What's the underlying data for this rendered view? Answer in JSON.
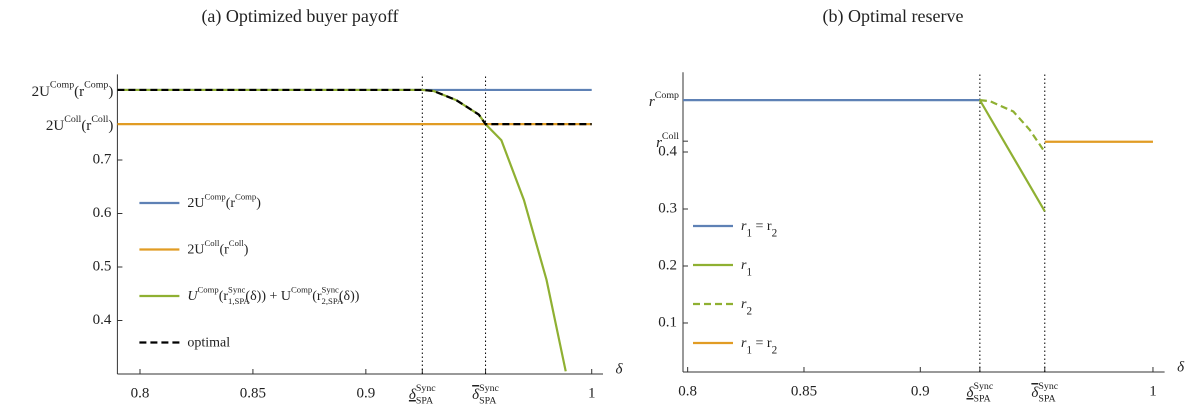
{
  "chart_data": [
    {
      "type": "line",
      "title": "(a) Optimized buyer payoff",
      "x_label": "δ",
      "xlim": [
        0.79,
        1.005
      ],
      "ylim": [
        0.3,
        0.86
      ],
      "legend": "left",
      "xticks": [
        0.8,
        0.85,
        0.9,
        {
          "value": 0.925,
          "label": [
            {
              "text": "δ",
              "mark": "under"
            },
            {
              "text": "SPA",
              "pos": "sub"
            },
            {
              "text": "Sync",
              "pos": "sup"
            }
          ],
          "line": "dotted"
        },
        {
          "value": 0.953,
          "label": [
            {
              "text": "δ",
              "mark": "over"
            },
            {
              "text": "SPA",
              "pos": "sub"
            },
            {
              "text": "Sync",
              "pos": "sup"
            }
          ],
          "line": "dotted"
        },
        1
      ],
      "yticks": [
        0.4,
        0.5,
        0.6,
        0.7,
        {
          "value": 0.767,
          "label": [
            {
              "text": "2U"
            },
            {
              "text": "Coll",
              "pos": "sup"
            },
            {
              "text": "(r"
            },
            {
              "text": "Coll",
              "pos": "sup"
            },
            {
              "text": ")"
            }
          ]
        },
        {
          "value": 0.831,
          "label": [
            {
              "text": "2U"
            },
            {
              "text": "Comp",
              "pos": "sup"
            },
            {
              "text": "(r"
            },
            {
              "text": "Comp",
              "pos": "sup"
            },
            {
              "text": ")"
            }
          ]
        }
      ],
      "series": [
        {
          "name": [
            {
              "text": "2U"
            },
            {
              "text": "Comp",
              "pos": "sup"
            },
            {
              "text": "(r"
            },
            {
              "text": "Comp",
              "pos": "sup"
            },
            {
              "text": ")"
            }
          ],
          "color": "#5e81b5",
          "x": [
            0.79,
            1.0
          ],
          "values": [
            0.831,
            0.831
          ]
        },
        {
          "name": [
            {
              "text": "2U"
            },
            {
              "text": "Coll",
              "pos": "sup"
            },
            {
              "text": "(r"
            },
            {
              "text": "Coll",
              "pos": "sup"
            },
            {
              "text": ")"
            }
          ],
          "color": "#e19c24",
          "x": [
            0.79,
            1.0
          ],
          "values": [
            0.767,
            0.767
          ]
        },
        {
          "name": [
            {
              "text": "U"
            },
            {
              "text": "Comp",
              "pos": "sup"
            },
            {
              "text": "(r"
            },
            {
              "text": "1,SPA",
              "pos": "sub"
            },
            {
              "text": "Sync",
              "pos": "sup"
            },
            {
              "text": "(δ)) + U"
            },
            {
              "text": "Comp",
              "pos": "sup"
            },
            {
              "text": "(r"
            },
            {
              "text": "2,SPA",
              "pos": "sub"
            },
            {
              "text": "Sync",
              "pos": "sup"
            },
            {
              "text": "(δ))"
            }
          ],
          "color": "#8fb032",
          "x": [
            0.79,
            0.925,
            0.93,
            0.94,
            0.95,
            0.953,
            0.96,
            0.97,
            0.98,
            0.9885
          ],
          "values": [
            0.831,
            0.831,
            0.829,
            0.812,
            0.785,
            0.767,
            0.737,
            0.625,
            0.476,
            0.305
          ]
        },
        {
          "name": [
            {
              "text": "optimal"
            }
          ],
          "color": "#000000",
          "dash": "dashed",
          "x": [
            0.79,
            0.925,
            0.93,
            0.94,
            0.95,
            0.953,
            1.0
          ],
          "values": [
            0.831,
            0.831,
            0.829,
            0.812,
            0.785,
            0.767,
            0.767
          ]
        }
      ]
    },
    {
      "type": "line",
      "title": "(b) Optimal reserve",
      "x_label": "δ",
      "xlim": [
        0.798,
        1.005
      ],
      "ylim": [
        0.014,
        0.54
      ],
      "legend": "left",
      "xticks": [
        0.8,
        0.85,
        0.9,
        {
          "value": 0.9256,
          "label": [
            {
              "text": "δ",
              "mark": "under"
            },
            {
              "text": "SPA",
              "pos": "sub"
            },
            {
              "text": "Sync",
              "pos": "sup"
            }
          ],
          "line": "dotted"
        },
        {
          "value": 0.9535,
          "label": [
            {
              "text": "δ",
              "mark": "over"
            },
            {
              "text": "SPA",
              "pos": "sub"
            },
            {
              "text": "Sync",
              "pos": "sup"
            }
          ],
          "line": "dotted"
        },
        1
      ],
      "yticks": [
        0.1,
        0.2,
        0.3,
        0.4,
        {
          "value": 0.419,
          "label": [
            {
              "text": "r"
            },
            {
              "text": "Coll",
              "pos": "sup"
            }
          ]
        },
        {
          "value": 0.491,
          "label": [
            {
              "text": "r"
            },
            {
              "text": "Comp",
              "pos": "sup"
            }
          ]
        }
      ],
      "series": [
        {
          "name": [
            {
              "text": "r"
            },
            {
              "text": "1",
              "pos": "sub"
            },
            {
              "text": " = r"
            },
            {
              "text": "2",
              "pos": "sub"
            }
          ],
          "color": "#5e81b5",
          "x": [
            0.798,
            0.9256
          ],
          "values": [
            0.491,
            0.491
          ]
        },
        {
          "name": [
            {
              "text": "r"
            },
            {
              "text": "1",
              "pos": "sub"
            }
          ],
          "color": "#8fb032",
          "x": [
            0.9256,
            0.9535
          ],
          "values": [
            0.491,
            0.296
          ]
        },
        {
          "name": [
            {
              "text": "r"
            },
            {
              "text": "2",
              "pos": "sub"
            }
          ],
          "color": "#8fb032",
          "dash": "dashed",
          "x": [
            0.9256,
            0.93,
            0.94,
            0.947,
            0.9535
          ],
          "values": [
            0.491,
            0.489,
            0.471,
            0.439,
            0.4
          ]
        },
        {
          "name": [
            {
              "text": "r"
            },
            {
              "text": "1",
              "pos": "sub"
            },
            {
              "text": " = r"
            },
            {
              "text": "2",
              "pos": "sub"
            }
          ],
          "color": "#e19c24",
          "x": [
            0.9535,
            1.0
          ],
          "values": [
            0.418,
            0.418
          ]
        }
      ]
    }
  ]
}
